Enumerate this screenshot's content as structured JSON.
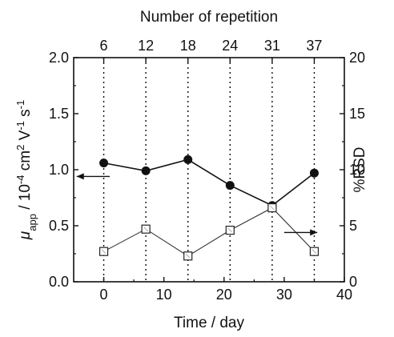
{
  "chart_data": {
    "type": "line",
    "title": "",
    "xlabel": "Time / day",
    "x2label": "Number of repetition",
    "ylabel": {
      "prefix": "μ",
      "sub": "app",
      "rest": " / 10",
      "sup1": "-4",
      "unit": " cm",
      "sup2": "2",
      "unit2": " V",
      "sup3": "-1",
      "unit3": " s",
      "sup4": "-1"
    },
    "y2label": "%RSD",
    "xlim": [
      -5,
      40
    ],
    "ylim": [
      0.0,
      2.0
    ],
    "y2lim": [
      0,
      20
    ],
    "xticks": [
      0,
      10,
      20,
      30,
      40
    ],
    "xtick_labels": [
      "0",
      "10",
      "20",
      "30",
      "40"
    ],
    "yticks": [
      0.0,
      0.5,
      1.0,
      1.5,
      2.0
    ],
    "ytick_labels": [
      "0.0",
      "0.5",
      "1.0",
      "1.5",
      "2.0"
    ],
    "y2ticks": [
      0,
      5,
      10,
      15,
      20
    ],
    "y2tick_labels": [
      "0",
      "5",
      "10",
      "15",
      "20"
    ],
    "x2ticks": [
      0,
      7,
      14,
      21,
      28,
      35
    ],
    "x2tick_labels": [
      "6",
      "12",
      "18",
      "24",
      "31",
      "37"
    ],
    "grid": "vertical dotted lines at top-axis ticks",
    "series": [
      {
        "axis": "left",
        "marker": "filled-circle",
        "x": [
          0,
          7,
          14,
          21,
          28,
          35
        ],
        "values": [
          1.06,
          0.99,
          1.09,
          0.86,
          0.68,
          0.97
        ]
      },
      {
        "axis": "right",
        "marker": "open-square",
        "x": [
          0,
          7,
          14,
          21,
          28,
          35
        ],
        "values": [
          2.7,
          4.7,
          2.3,
          4.6,
          6.6,
          2.7
        ]
      }
    ],
    "annotations": [
      {
        "type": "arrow",
        "direction": "left",
        "x": [
          -4.5,
          1
        ],
        "y": 0.94,
        "axis": "left"
      },
      {
        "type": "arrow",
        "direction": "right",
        "x": [
          30,
          35.5
        ],
        "y": 4.4,
        "axis": "right"
      }
    ]
  }
}
